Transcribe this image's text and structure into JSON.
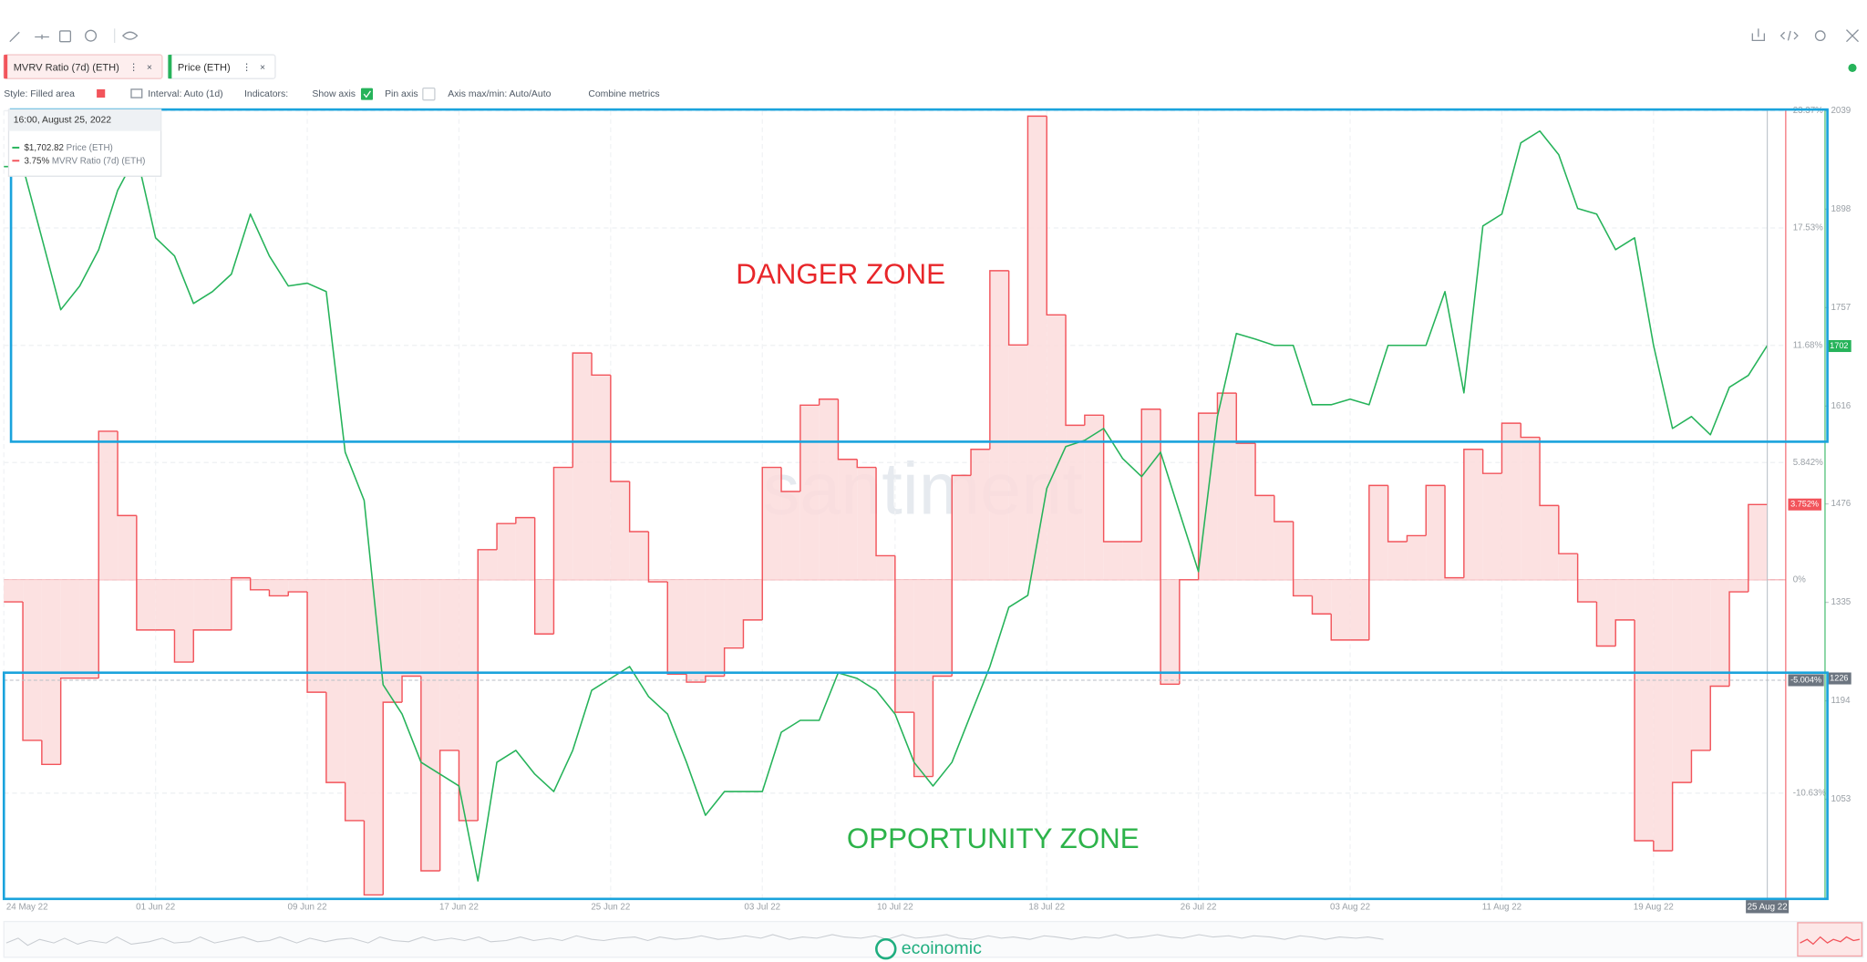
{
  "toolbar": {
    "style": "Style: Filled area",
    "interval": "Interval: Auto (1d)",
    "indicators": "Indicators:",
    "show_axis": "Show axis",
    "pin_axis": "Pin axis",
    "axis_minmax": "Axis max/min: Auto/Auto",
    "combine": "Combine metrics"
  },
  "tooltip": {
    "time": "16:00, August 25, 2022",
    "rows": [
      "$1,702.82",
      "3.75%"
    ]
  },
  "watermark": "santiment",
  "footer_brand": "ecoinomic",
  "chart_data": {
    "type": "line",
    "x": [
      "2022-05-24",
      "2022-05-25",
      "2022-05-26",
      "2022-05-27",
      "2022-05-28",
      "2022-05-29",
      "2022-05-30",
      "2022-05-31",
      "2022-06-01",
      "2022-06-02",
      "2022-06-03",
      "2022-06-04",
      "2022-06-05",
      "2022-06-06",
      "2022-06-07",
      "2022-06-08",
      "2022-06-09",
      "2022-06-10",
      "2022-06-11",
      "2022-06-12",
      "2022-06-13",
      "2022-06-14",
      "2022-06-15",
      "2022-06-16",
      "2022-06-17",
      "2022-06-18",
      "2022-06-19",
      "2022-06-20",
      "2022-06-21",
      "2022-06-22",
      "2022-06-23",
      "2022-06-24",
      "2022-06-25",
      "2022-06-26",
      "2022-06-27",
      "2022-06-28",
      "2022-06-29",
      "2022-06-30",
      "2022-07-01",
      "2022-07-02",
      "2022-07-03",
      "2022-07-04",
      "2022-07-05",
      "2022-07-06",
      "2022-07-07",
      "2022-07-08",
      "2022-07-09",
      "2022-07-10",
      "2022-07-11",
      "2022-07-12",
      "2022-07-13",
      "2022-07-14",
      "2022-07-15",
      "2022-07-16",
      "2022-07-17",
      "2022-07-18",
      "2022-07-19",
      "2022-07-20",
      "2022-07-21",
      "2022-07-22",
      "2022-07-23",
      "2022-07-24",
      "2022-07-25",
      "2022-07-26",
      "2022-07-27",
      "2022-07-28",
      "2022-07-29",
      "2022-07-30",
      "2022-07-31",
      "2022-08-01",
      "2022-08-02",
      "2022-08-03",
      "2022-08-04",
      "2022-08-05",
      "2022-08-06",
      "2022-08-07",
      "2022-08-08",
      "2022-08-09",
      "2022-08-10",
      "2022-08-11",
      "2022-08-12",
      "2022-08-13",
      "2022-08-14",
      "2022-08-15",
      "2022-08-16",
      "2022-08-17",
      "2022-08-18",
      "2022-08-19",
      "2022-08-20",
      "2022-08-21",
      "2022-08-22",
      "2022-08-23",
      "2022-08-24",
      "2022-08-25"
    ],
    "series": [
      {
        "name": "MVRV Ratio (7d) (ETH)",
        "color": "#f2545b",
        "fill": "#fcdcdc",
        "style": "step-area",
        "axis": "y",
        "values": [
          -1.1,
          -1.1,
          -8.0,
          -9.2,
          -4.9,
          -4.9,
          7.4,
          3.2,
          -2.5,
          -2.5,
          -4.1,
          -2.5,
          -2.5,
          0.1,
          -0.5,
          -0.8,
          -0.6,
          -5.6,
          -10.1,
          -12.0,
          -15.7,
          -6.1,
          -4.8,
          -14.5,
          -8.5,
          -12.0,
          1.5,
          2.8,
          3.1,
          -2.7,
          5.6,
          11.3,
          10.2,
          4.9,
          2.4,
          -0.1,
          -4.7,
          -5.1,
          -4.8,
          -3.4,
          -2.0,
          5.6,
          4.4,
          8.7,
          9.0,
          6.0,
          5.6,
          1.2,
          -6.6,
          -9.8,
          -4.8,
          5.2,
          6.5,
          15.4,
          11.7,
          23.1,
          13.2,
          7.7,
          8.2,
          1.9,
          1.9,
          8.5,
          -5.2,
          0.0,
          8.3,
          9.3,
          6.8,
          4.2,
          2.9,
          -0.8,
          -1.7,
          -3.0,
          -3.0,
          4.7,
          1.9,
          2.2,
          4.7,
          0.1,
          6.5,
          5.3,
          7.8,
          7.1,
          3.7,
          1.3,
          -1.1,
          -3.3,
          -2.0,
          -13.0,
          -13.5,
          -10.1,
          -8.5,
          -5.3,
          -0.6,
          3.75
        ]
      },
      {
        "name": "Price (ETH)",
        "color": "#26b35a",
        "style": "line",
        "axis": "y2",
        "values": [
          1959,
          1959,
          1857,
          1754,
          1788,
          1840,
          1925,
          1976,
          1857,
          1831,
          1763,
          1780,
          1805,
          1891,
          1831,
          1788,
          1792,
          1780,
          1550,
          1481,
          1217,
          1175,
          1106,
          1089,
          1072,
          936,
          1106,
          1123,
          1089,
          1064,
          1123,
          1209,
          1226,
          1243,
          1200,
          1175,
          1106,
          1030,
          1064,
          1064,
          1064,
          1149,
          1166,
          1166,
          1234,
          1226,
          1209,
          1175,
          1106,
          1072,
          1106,
          1175,
          1243,
          1328,
          1345,
          1498,
          1558,
          1567,
          1584,
          1541,
          1515,
          1550,
          1464,
          1379,
          1601,
          1720,
          1712,
          1703,
          1703,
          1618,
          1618,
          1626,
          1618,
          1703,
          1703,
          1703,
          1780,
          1635,
          1874,
          1891,
          1993,
          2010,
          1976,
          1899,
          1891,
          1840,
          1857,
          1703,
          1584,
          1601,
          1575,
          1643,
          1660,
          1702.82
        ]
      }
    ],
    "ylim": [
      -15.84,
      23.37
    ],
    "yticks": [
      {
        "value": 23.37,
        "label": "23.37%"
      },
      {
        "value": 17.53,
        "label": "17.53%"
      },
      {
        "value": 11.68,
        "label": "11.68%"
      },
      {
        "value": 5.842,
        "label": "5.842%"
      },
      {
        "value": 0,
        "label": "0%"
      },
      {
        "value": -10.63,
        "label": "-10.63%"
      }
    ],
    "y2lim": [
      912,
      2039
    ],
    "y2ticks": [
      2039,
      1898,
      1757,
      1616,
      1476,
      1335,
      1194,
      1053
    ],
    "xticks": [
      {
        "value": "2022-05-24",
        "label": "24 May 22"
      },
      {
        "value": "2022-06-01",
        "label": "01 Jun 22"
      },
      {
        "value": "2022-06-09",
        "label": "09 Jun 22"
      },
      {
        "value": "2022-06-17",
        "label": "17 Jun 22"
      },
      {
        "value": "2022-06-25",
        "label": "25 Jun 22"
      },
      {
        "value": "2022-07-03",
        "label": "03 Jul 22"
      },
      {
        "value": "2022-07-10",
        "label": "10 Jul 22"
      },
      {
        "value": "2022-07-18",
        "label": "18 Jul 22"
      },
      {
        "value": "2022-07-26",
        "label": "26 Jul 22"
      },
      {
        "value": "2022-08-03",
        "label": "03 Aug 22"
      },
      {
        "value": "2022-08-11",
        "label": "11 Aug 22"
      },
      {
        "value": "2022-08-19",
        "label": "19 Aug 22"
      }
    ],
    "grid": true,
    "annotations": [
      {
        "text": "DANGER ZONE",
        "color": "#e8262a"
      },
      {
        "text": "OPPORTUNITY ZONE",
        "color": "#2db34a"
      }
    ],
    "markers": [
      {
        "value": 3.752,
        "label": "3.752%",
        "axis": "y",
        "color": "#f2545b"
      },
      {
        "value": 1702,
        "label": "1702",
        "axis": "y2",
        "color": "#26b35a"
      }
    ],
    "crosshair": {
      "x": {
        "value": "2022-08-25",
        "label": "25 Aug 22"
      },
      "y": {
        "value": -5.004,
        "label": "-5.004%"
      },
      "y2": {
        "value": 1226,
        "label": "1226"
      }
    }
  }
}
